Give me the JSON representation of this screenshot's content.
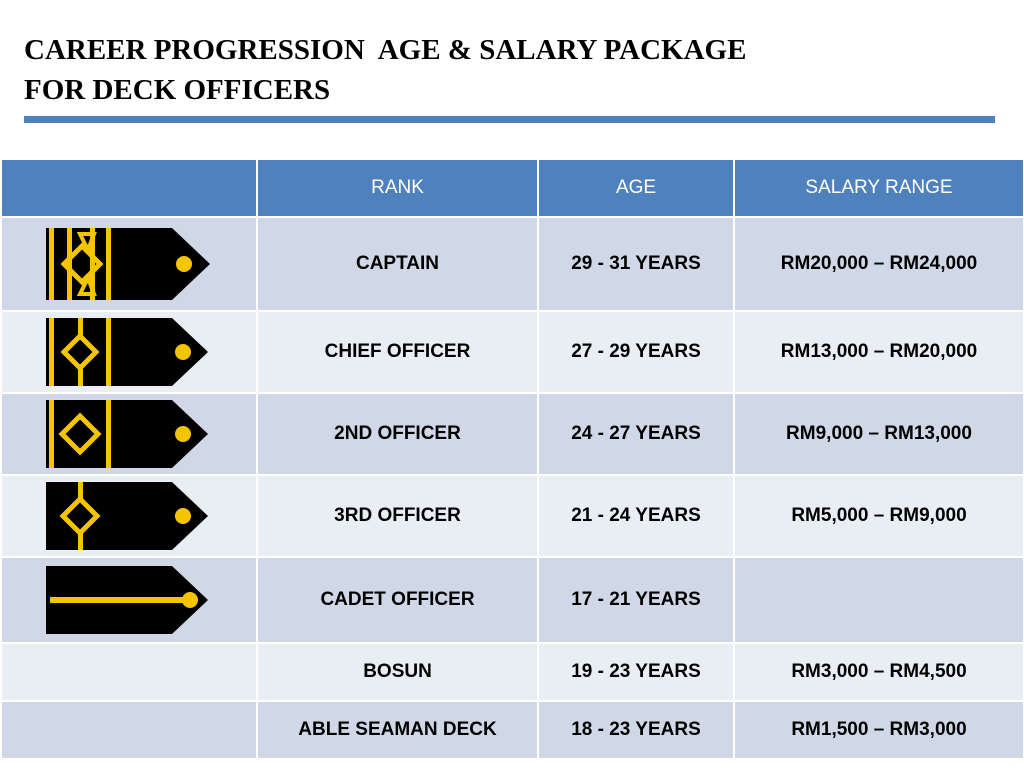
{
  "header": {
    "title_line1": "CAREER PROGRESSION  AGE & SALARY PACKAGE",
    "title_line2": "FOR DECK OFFICERS"
  },
  "table": {
    "columns": [
      "",
      "RANK",
      "AGE",
      "SALARY RANGE"
    ],
    "rows": [
      {
        "insignia": "captain-epaulette-icon",
        "stripes": 4,
        "rank": "CAPTAIN",
        "age": "29 - 31 YEARS",
        "salary": "RM20,000 – RM24,000"
      },
      {
        "insignia": "chief-officer-epaulette-icon",
        "stripes": 3,
        "rank": "CHIEF OFFICER",
        "age": "27 - 29 YEARS",
        "salary": "RM13,000 – RM20,000"
      },
      {
        "insignia": "second-officer-epaulette-icon",
        "stripes": 2,
        "rank": "2ND OFFICER",
        "age": "24 - 27 YEARS",
        "salary": "RM9,000 – RM13,000"
      },
      {
        "insignia": "third-officer-epaulette-icon",
        "stripes": 1,
        "rank": "3RD OFFICER",
        "age": "21 - 24 YEARS",
        "salary": "RM5,000 – RM9,000"
      },
      {
        "insignia": "cadet-officer-epaulette-icon",
        "stripes": 0,
        "rank": "CADET OFFICER",
        "age": "17 - 21 YEARS",
        "salary": ""
      },
      {
        "insignia": "",
        "stripes": 0,
        "rank": "BOSUN",
        "age": "19 - 23 YEARS",
        "salary": "RM3,000 – RM4,500"
      },
      {
        "insignia": "",
        "stripes": 0,
        "rank": "ABLE SEAMAN DECK",
        "age": "18 - 23 YEARS",
        "salary": "RM1,500 – RM3,000"
      }
    ]
  },
  "colors": {
    "header_blue": "#4f81bd",
    "row_dark": "#d0d8e8",
    "row_light": "#e9edf4",
    "gold": "#f5c400",
    "epaulette_black": "#000000"
  }
}
